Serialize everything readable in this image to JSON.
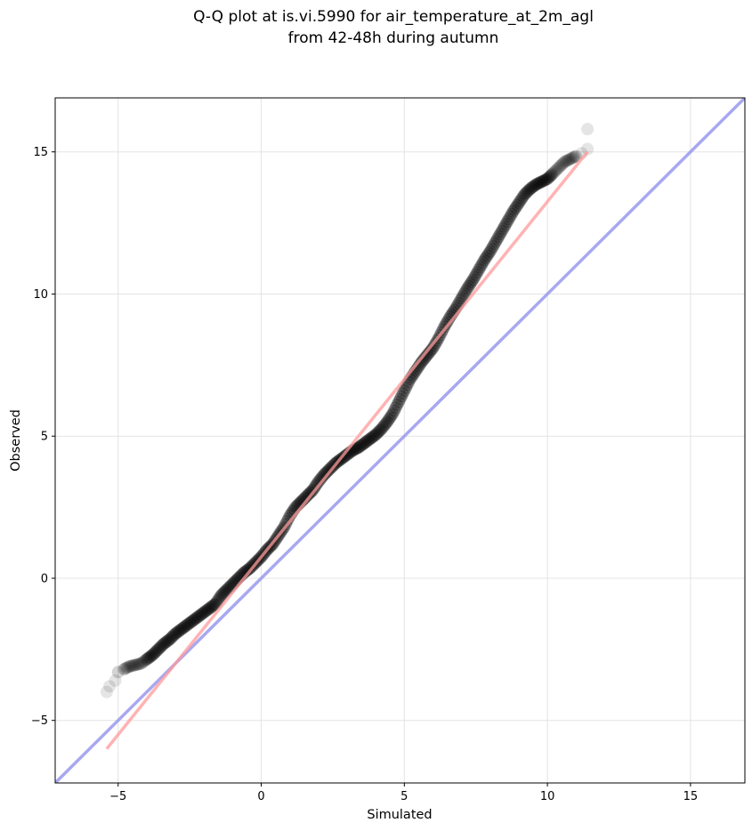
{
  "chart_data": {
    "type": "scatter",
    "title": "Q-Q plot at is.vi.5990 for air_temperature_at_2m_agl",
    "subtitle": "from 42-48h during autumn",
    "xlabel": "Simulated",
    "ylabel": "Observed",
    "xlim": [
      -7.2,
      16.9
    ],
    "ylim": [
      -7.2,
      16.9
    ],
    "xticks": [
      -5,
      0,
      5,
      10,
      15
    ],
    "yticks": [
      -5,
      0,
      5,
      10,
      15
    ],
    "xtick_labels": [
      "−5",
      "0",
      "5",
      "10",
      "15"
    ],
    "ytick_labels": [
      "−5",
      "0",
      "5",
      "10",
      "15"
    ],
    "grid": true,
    "series": [
      {
        "kind": "quantile_points",
        "color": "#000000",
        "x": [
          -5.4,
          -5.3,
          -5.1,
          -5.0,
          -4.8,
          -4.6,
          -4.4,
          -4.2,
          -4.0,
          -3.8,
          -3.6,
          -3.4,
          -3.2,
          -3.0,
          -2.8,
          -2.6,
          -2.4,
          -2.2,
          -2.0,
          -1.8,
          -1.6,
          -1.4,
          -1.2,
          -1.0,
          -0.8,
          -0.6,
          -0.4,
          -0.2,
          0.0,
          0.2,
          0.4,
          0.6,
          0.8,
          1.0,
          1.2,
          1.4,
          1.6,
          1.8,
          2.0,
          2.2,
          2.4,
          2.6,
          2.8,
          3.0,
          3.2,
          3.4,
          3.6,
          3.8,
          4.0,
          4.2,
          4.4,
          4.6,
          4.8,
          5.0,
          5.2,
          5.4,
          5.6,
          5.8,
          6.0,
          6.2,
          6.4,
          6.6,
          6.8,
          7.0,
          7.2,
          7.4,
          7.6,
          7.8,
          8.0,
          8.2,
          8.4,
          8.6,
          8.8,
          9.0,
          9.2,
          9.4,
          9.6,
          9.8,
          10.0,
          10.2,
          10.4,
          10.6,
          10.8,
          11.0,
          11.2,
          11.4,
          11.4
        ],
        "y": [
          -4.0,
          -3.8,
          -3.6,
          -3.3,
          -3.2,
          -3.1,
          -3.05,
          -3.0,
          -2.85,
          -2.7,
          -2.5,
          -2.3,
          -2.15,
          -1.95,
          -1.8,
          -1.65,
          -1.5,
          -1.35,
          -1.2,
          -1.05,
          -0.9,
          -0.6,
          -0.4,
          -0.2,
          0.0,
          0.2,
          0.35,
          0.55,
          0.75,
          1.0,
          1.2,
          1.5,
          1.8,
          2.2,
          2.5,
          2.7,
          2.9,
          3.1,
          3.4,
          3.65,
          3.85,
          4.05,
          4.2,
          4.35,
          4.5,
          4.6,
          4.75,
          4.9,
          5.05,
          5.25,
          5.5,
          5.8,
          6.2,
          6.6,
          7.0,
          7.3,
          7.6,
          7.85,
          8.1,
          8.45,
          8.85,
          9.2,
          9.5,
          9.85,
          10.2,
          10.5,
          10.85,
          11.2,
          11.5,
          11.85,
          12.2,
          12.55,
          12.9,
          13.2,
          13.5,
          13.7,
          13.85,
          13.95,
          14.05,
          14.25,
          14.45,
          14.65,
          14.75,
          14.85,
          14.95,
          15.1,
          15.8
        ]
      },
      {
        "kind": "fit_line",
        "color": "#ff9999",
        "x": [
          -5.4,
          11.4
        ],
        "y": [
          -6.0,
          15.0
        ]
      },
      {
        "kind": "identity_line",
        "color": "#9999ee",
        "x": [
          -7.2,
          16.9
        ],
        "y": [
          -7.2,
          16.9
        ]
      }
    ]
  }
}
